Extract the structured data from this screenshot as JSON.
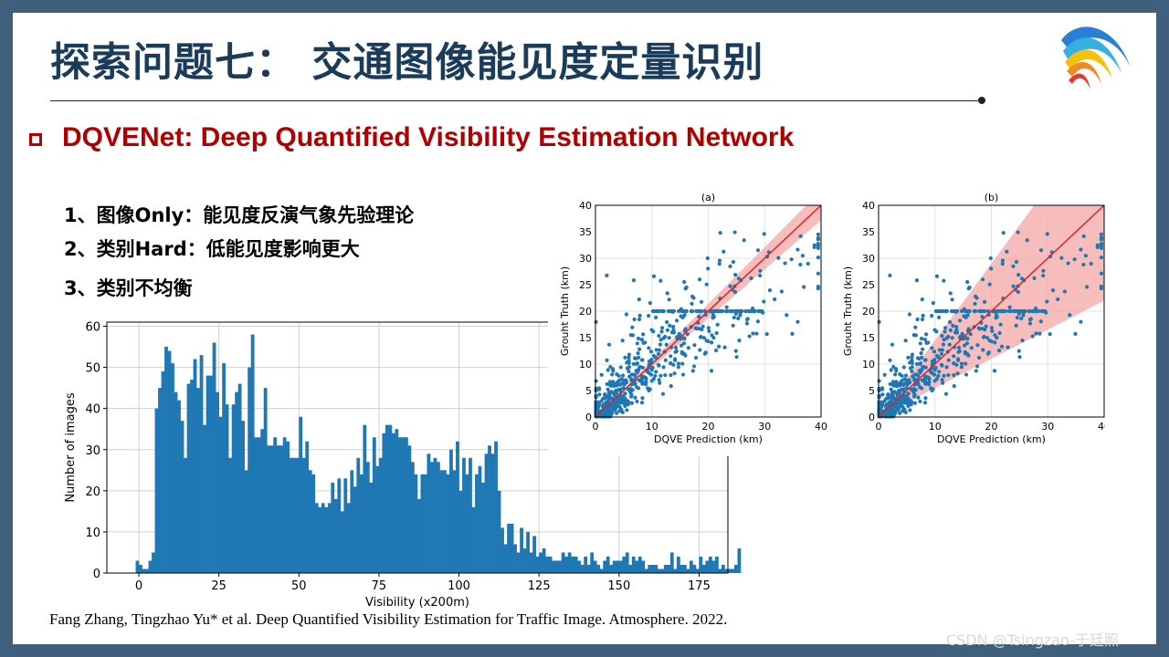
{
  "slide": {
    "title": "探索问题七：  交通图像能见度定量识别",
    "subtitle": "DQVENet: Deep Quantified Visibility Estimation Network",
    "points": [
      "1、图像Only：能见度反演气象先验理论",
      "2、类别Hard：低能见度影响更大",
      "3、类别不均衡"
    ],
    "citation": "Fang Zhang,  Tingzhao  Yu* et al. Deep Quantified Visibility Estimation for Traffic Image. Atmosphere.  2022.",
    "watermark": "CSDN @Tsingzao-于廷照",
    "logo_icon": "rainbow-swoosh-logo-icon"
  },
  "colors": {
    "title": "#1a3b59",
    "accent_red": "#b00000",
    "bar": "#1f77b4",
    "fit_line": "#d62728",
    "band": "#f4a6a6"
  },
  "chart_data": [
    {
      "type": "bar",
      "title": "",
      "xlabel": "Visibility (x200m)",
      "ylabel": "Number of images",
      "xlim": [
        -10,
        184
      ],
      "ylim": [
        0,
        61
      ],
      "xticks": [
        "0",
        "25",
        "50",
        "75",
        "100",
        "125",
        "150",
        "175"
      ],
      "yticks": [
        "0",
        "10",
        "20",
        "30",
        "40",
        "50",
        "60"
      ],
      "grid": true,
      "bin_start": -1,
      "bin_width": 1,
      "values": [
        3,
        2,
        1,
        1,
        3,
        5,
        40,
        45,
        49,
        55,
        54,
        51,
        44,
        42,
        37,
        28,
        46,
        47,
        52,
        45,
        53,
        36,
        48,
        48,
        56,
        44,
        38,
        51,
        41,
        28,
        41,
        44,
        46,
        37,
        25,
        50,
        58,
        33,
        33,
        35,
        45,
        31,
        31,
        33,
        31,
        31,
        33,
        32,
        28,
        28,
        28,
        38,
        28,
        32,
        25,
        24,
        17,
        16,
        17,
        16,
        17,
        22,
        18,
        23,
        15,
        23,
        17,
        25,
        21,
        28,
        24,
        36,
        27,
        22,
        33,
        26,
        28,
        34,
        36,
        36,
        34,
        35,
        33,
        33,
        33,
        31,
        27,
        24,
        18,
        24,
        24,
        29,
        27,
        28,
        27,
        25,
        25,
        24,
        30,
        25,
        32,
        20,
        28,
        24,
        28,
        16,
        24,
        26,
        22,
        29,
        31,
        29,
        32,
        20,
        11,
        7,
        12,
        12,
        7,
        5,
        11,
        6,
        10,
        5,
        9,
        4,
        5,
        6,
        4,
        4,
        3,
        3,
        3,
        5,
        4,
        5,
        4,
        4,
        3,
        2,
        4,
        2,
        5,
        3,
        2,
        1,
        3,
        4,
        2,
        3,
        3,
        3,
        4,
        5,
        2,
        4,
        3,
        4,
        3,
        1,
        2,
        2,
        2,
        1,
        1,
        2,
        2,
        5,
        1,
        4,
        2,
        2,
        1,
        3,
        2,
        1,
        4,
        2,
        3,
        4,
        3,
        4,
        1,
        2,
        1,
        1,
        1,
        2,
        6
      ]
    },
    {
      "type": "scatter",
      "title": "(a)",
      "xlabel": "DQVE Prediction (km)",
      "ylabel": "Grouht Truth (km)",
      "xlim": [
        0,
        40
      ],
      "ylim": [
        0,
        40
      ],
      "ticks": [
        "0",
        "10",
        "20",
        "30",
        "40"
      ],
      "grid": true,
      "fit_line": [
        [
          0,
          0
        ],
        [
          40,
          40
        ]
      ],
      "band": "narrow"
    },
    {
      "type": "scatter",
      "title": "(b)",
      "xlabel": "DQVE Prediction (km)",
      "ylabel": "Grouht Truth (km)",
      "xlim": [
        0,
        40
      ],
      "ylim": [
        0,
        40
      ],
      "ticks": [
        "0",
        "10",
        "20",
        "30",
        "40"
      ],
      "grid": true,
      "fit_line": [
        [
          0,
          0
        ],
        [
          40,
          40
        ]
      ],
      "band": "wide"
    }
  ]
}
